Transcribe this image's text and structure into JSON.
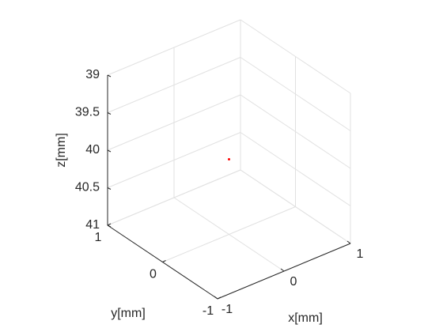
{
  "chart_data": {
    "type": "scatter3d",
    "x": [
      0
    ],
    "y": [
      0
    ],
    "z": [
      40
    ],
    "color": "#ff0000",
    "xlabel": "x[mm]",
    "ylabel": "y[mm]",
    "zlabel": "z[mm]",
    "xlim": [
      -1,
      1
    ],
    "ylim": [
      -1,
      1
    ],
    "zlim": [
      39,
      41
    ],
    "z_reverse": true,
    "xticks": [
      -1,
      0,
      1
    ],
    "yticks": [
      -1,
      0,
      1
    ],
    "zticks": [
      39,
      39.5,
      40,
      40.5,
      41
    ],
    "grid": true
  }
}
